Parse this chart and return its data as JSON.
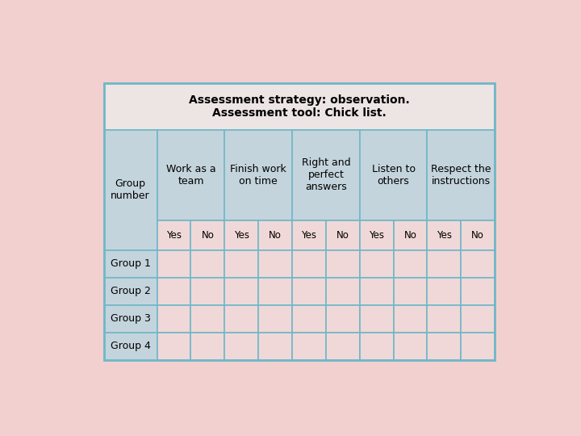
{
  "title_line1": "Assessment strategy: observation.",
  "title_line2": "Assessment tool: Chick list.",
  "background_color": "#f2d0d0",
  "table_bg_header": "#c4d4dc",
  "table_bg_data": "#f0d8d8",
  "table_bg_yn": "#f0d8d8",
  "border_color": "#70b8c8",
  "title_row_bg": "#ede4e4",
  "col_header_labels": [
    "Work as a\nteam",
    "Finish work\non time",
    "Right and\nperfect\nanswers",
    "Listen to\nothers",
    "Respect the\ninstructions"
  ],
  "yes_no": [
    "Yes",
    "No"
  ],
  "font_size_title": 10,
  "font_size_header": 9,
  "font_size_cell": 8.5
}
